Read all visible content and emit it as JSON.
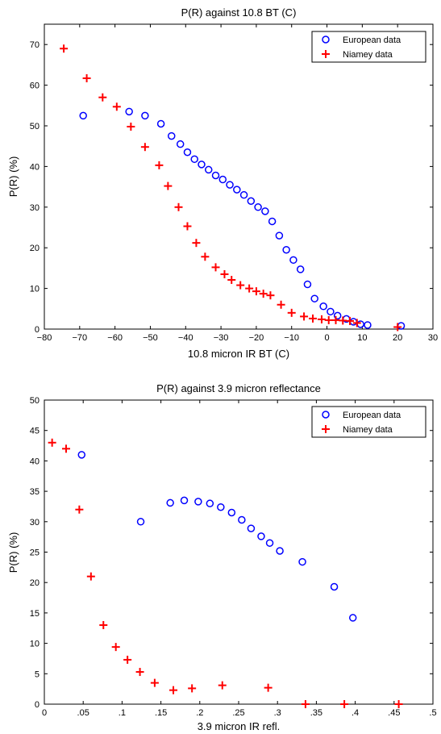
{
  "chart_data": [
    {
      "type": "scatter",
      "title": "P(R) against 10.8 BT (C)",
      "xlabel": "10.8 micron IR BT (C)",
      "ylabel": "P(R) (%)",
      "xlim": [
        -80,
        30
      ],
      "ylim": [
        0,
        75
      ],
      "xticks": [
        -80,
        -70,
        -60,
        -50,
        -40,
        -30,
        -20,
        -10,
        0,
        10,
        20,
        30
      ],
      "yticks": [
        0,
        10,
        20,
        30,
        40,
        50,
        60,
        70
      ],
      "grid": false,
      "legend_position": "top-right",
      "series": [
        {
          "name": "European data",
          "marker": "circle",
          "color": "#0000ff",
          "x": [
            -69,
            -56,
            -51.5,
            -47,
            -44,
            -41.5,
            -39.5,
            -37.5,
            -35.5,
            -33.5,
            -31.5,
            -29.5,
            -27.5,
            -25.5,
            -23.5,
            -21.5,
            -19.5,
            -17.5,
            -15.5,
            -13.5,
            -11.5,
            -9.5,
            -7.5,
            -5.5,
            -3.5,
            -1,
            1,
            3,
            5.5,
            7.5,
            9.5,
            11.5,
            21
          ],
          "y": [
            52.5,
            53.5,
            52.5,
            50.5,
            47.5,
            45.5,
            43.5,
            41.8,
            40.5,
            39.2,
            37.8,
            36.8,
            35.5,
            34.3,
            33,
            31.5,
            30,
            29,
            26.5,
            23,
            19.5,
            17,
            14.7,
            11,
            7.5,
            5.6,
            4.3,
            3.3,
            2.5,
            1.8,
            1.2,
            1,
            0.8
          ]
        },
        {
          "name": "Niamey data",
          "marker": "plus",
          "color": "#ff0000",
          "x": [
            -74.5,
            -68,
            -63.5,
            -59.5,
            -55.5,
            -51.5,
            -47.5,
            -45,
            -42,
            -39.5,
            -37,
            -34.5,
            -31.5,
            -29,
            -27,
            -24.5,
            -22,
            -20,
            -18,
            -16,
            -13,
            -10,
            -6.5,
            -4,
            -1.5,
            0.5,
            2.5,
            4.5,
            6.5,
            8.5,
            20
          ],
          "y": [
            69,
            61.7,
            57,
            54.7,
            49.8,
            44.8,
            40.3,
            35.2,
            30,
            25.3,
            21.2,
            17.8,
            15.2,
            13.5,
            12.1,
            10.8,
            10,
            9.3,
            8.7,
            8.3,
            6,
            4,
            3.1,
            2.6,
            2.4,
            2.2,
            2.2,
            2.1,
            2,
            1.5,
            0.5
          ]
        }
      ]
    },
    {
      "type": "scatter",
      "title": "P(R) against 3.9 micron reflectance",
      "xlabel": "3.9 micron IR refl.",
      "ylabel": "P(R) (%)",
      "xlim": [
        0,
        0.5
      ],
      "ylim": [
        0,
        50
      ],
      "xticks": [
        0,
        0.05,
        0.1,
        0.15,
        0.2,
        0.25,
        0.3,
        0.35,
        0.4,
        0.45,
        0.5
      ],
      "yticks": [
        0,
        5,
        10,
        15,
        20,
        25,
        30,
        35,
        40,
        45,
        50
      ],
      "grid": false,
      "legend_position": "top-right",
      "series": [
        {
          "name": "European data",
          "marker": "circle",
          "color": "#0000ff",
          "x": [
            0.048,
            0.124,
            0.162,
            0.18,
            0.198,
            0.213,
            0.227,
            0.241,
            0.254,
            0.266,
            0.279,
            0.29,
            0.303,
            0.332,
            0.373,
            0.397
          ],
          "y": [
            41,
            30,
            33.1,
            33.5,
            33.3,
            33,
            32.4,
            31.5,
            30.3,
            28.9,
            27.6,
            26.5,
            25.2,
            23.4,
            19.3,
            14.2
          ]
        },
        {
          "name": "Niamey data",
          "marker": "plus",
          "color": "#ff0000",
          "x": [
            0.01,
            0.028,
            0.045,
            0.06,
            0.076,
            0.092,
            0.107,
            0.123,
            0.142,
            0.166,
            0.19,
            0.229,
            0.288,
            0.336,
            0.386,
            0.456
          ],
          "y": [
            43,
            42,
            32,
            21,
            13,
            9.4,
            7.3,
            5.3,
            3.5,
            2.3,
            2.6,
            3.1,
            2.7,
            0,
            0,
            0
          ]
        }
      ]
    }
  ]
}
